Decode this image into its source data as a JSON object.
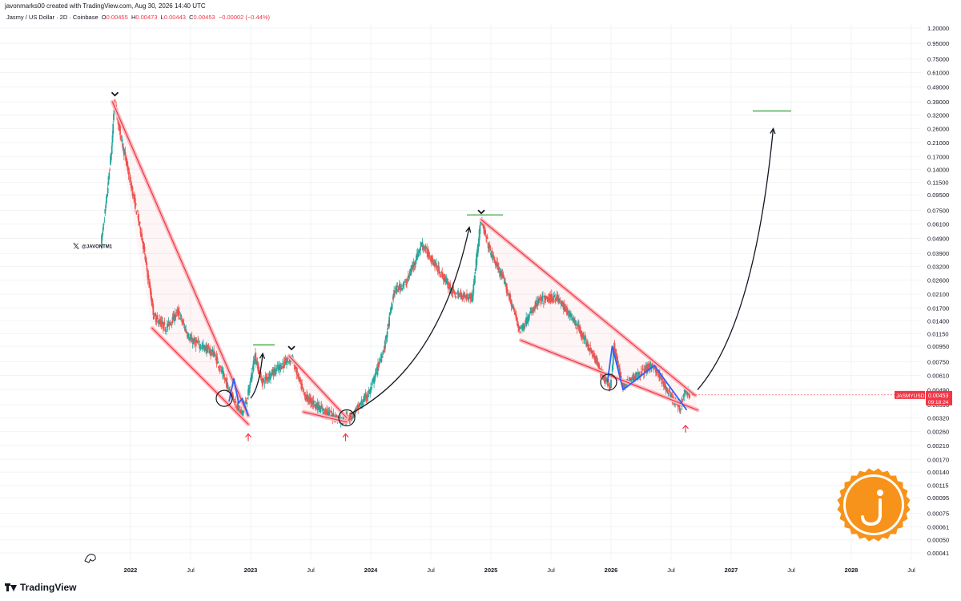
{
  "header": {
    "creator_line": "javonmarks00 created with TradingView.com, Aug 30, 2026 14:40 UTC",
    "symbol_desc": "Jasmy / US Dollar · 2D · Coinbase",
    "open_label": "O",
    "open": "0.00455",
    "high_label": "H",
    "high": "0.00473",
    "low_label": "L",
    "low": "0.00443",
    "close_label": "C",
    "close": "0.00453",
    "change": "−0.00002 (−0.44%)"
  },
  "watermark_handle": "@JAVONTM1",
  "price_tag": {
    "symbol": "JASMYUSD",
    "price": "0.00453",
    "countdown": "09:18:24"
  },
  "footer": {
    "brand": "TradingView"
  },
  "colors": {
    "up": "#26a69a",
    "down": "#ef5350",
    "channel": "#f23645",
    "wave": "#2962ff",
    "target": "#4caf50",
    "coin": "#f7931a"
  },
  "chart_data": {
    "type": "line",
    "series_note": "JASMYUSD 2D candles (approximate trace)",
    "y_scale": "log",
    "y_ticks": [
      "1.20000",
      "0.95000",
      "0.75000",
      "0.61000",
      "0.49000",
      "0.39000",
      "0.32000",
      "0.26000",
      "0.21000",
      "0.17000",
      "0.14000",
      "0.11500",
      "0.09500",
      "0.07500",
      "0.06100",
      "0.04900",
      "0.03900",
      "0.03200",
      "0.02600",
      "0.02100",
      "0.01700",
      "0.01400",
      "0.01150",
      "0.00950",
      "0.00750",
      "0.00610",
      "0.00490",
      "0.00390",
      "0.00320",
      "0.00260",
      "0.00210",
      "0.00170",
      "0.00140",
      "0.00115",
      "0.00095",
      "0.00075",
      "0.00061",
      "0.00050",
      "0.00041"
    ],
    "x_ticks": [
      "2022",
      "Jul",
      "2023",
      "Jul",
      "2024",
      "Jul",
      "2025",
      "Jul",
      "2026",
      "Jul",
      "2027",
      "Jul",
      "2028",
      "Jul"
    ],
    "price_path": [
      {
        "t": 2021.76,
        "y": 0.045
      },
      {
        "t": 2021.8,
        "y": 0.08
      },
      {
        "t": 2021.85,
        "y": 0.2
      },
      {
        "t": 2021.87,
        "y": 0.39
      },
      {
        "t": 2021.93,
        "y": 0.22
      },
      {
        "t": 2022.0,
        "y": 0.12
      },
      {
        "t": 2022.1,
        "y": 0.05
      },
      {
        "t": 2022.2,
        "y": 0.015
      },
      {
        "t": 2022.3,
        "y": 0.0125
      },
      {
        "t": 2022.4,
        "y": 0.016
      },
      {
        "t": 2022.5,
        "y": 0.0105
      },
      {
        "t": 2022.6,
        "y": 0.0095
      },
      {
        "t": 2022.7,
        "y": 0.0085
      },
      {
        "t": 2022.8,
        "y": 0.0055
      },
      {
        "t": 2022.86,
        "y": 0.0043
      },
      {
        "t": 2022.93,
        "y": 0.0033
      },
      {
        "t": 2022.98,
        "y": 0.0044
      },
      {
        "t": 2023.04,
        "y": 0.0082
      },
      {
        "t": 2023.1,
        "y": 0.0055
      },
      {
        "t": 2023.2,
        "y": 0.0065
      },
      {
        "t": 2023.35,
        "y": 0.008
      },
      {
        "t": 2023.45,
        "y": 0.0045
      },
      {
        "t": 2023.6,
        "y": 0.0036
      },
      {
        "t": 2023.75,
        "y": 0.0031
      },
      {
        "t": 2023.85,
        "y": 0.0033
      },
      {
        "t": 2024.0,
        "y": 0.0048
      },
      {
        "t": 2024.12,
        "y": 0.0095
      },
      {
        "t": 2024.2,
        "y": 0.022
      },
      {
        "t": 2024.3,
        "y": 0.025
      },
      {
        "t": 2024.43,
        "y": 0.045
      },
      {
        "t": 2024.55,
        "y": 0.032
      },
      {
        "t": 2024.7,
        "y": 0.021
      },
      {
        "t": 2024.85,
        "y": 0.02
      },
      {
        "t": 2024.92,
        "y": 0.065
      },
      {
        "t": 2025.0,
        "y": 0.04
      },
      {
        "t": 2025.12,
        "y": 0.025
      },
      {
        "t": 2025.25,
        "y": 0.012
      },
      {
        "t": 2025.4,
        "y": 0.019
      },
      {
        "t": 2025.55,
        "y": 0.02
      },
      {
        "t": 2025.7,
        "y": 0.014
      },
      {
        "t": 2025.85,
        "y": 0.0085
      },
      {
        "t": 2025.95,
        "y": 0.0058
      },
      {
        "t": 2026.0,
        "y": 0.0052
      },
      {
        "t": 2026.03,
        "y": 0.0095
      },
      {
        "t": 2026.1,
        "y": 0.0052
      },
      {
        "t": 2026.25,
        "y": 0.0063
      },
      {
        "t": 2026.35,
        "y": 0.0072
      },
      {
        "t": 2026.45,
        "y": 0.0052
      },
      {
        "t": 2026.5,
        "y": 0.0044
      },
      {
        "t": 2026.58,
        "y": 0.0037
      },
      {
        "t": 2026.62,
        "y": 0.0049
      },
      {
        "t": 2026.66,
        "y": 0.00453
      }
    ],
    "last_price": 0.00453,
    "annotations": {
      "channel_1": {
        "top": [
          [
            2021.85,
            0.39
          ],
          [
            2022.98,
            0.0033
          ]
        ],
        "bottom": [
          [
            2022.18,
            0.0125
          ],
          [
            2022.98,
            0.0029
          ]
        ]
      },
      "channel_2": {
        "top": [
          [
            2023.32,
            0.0082
          ],
          [
            2023.8,
            0.0032
          ]
        ],
        "bottom": [
          [
            2023.44,
            0.0035
          ],
          [
            2023.8,
            0.003
          ]
        ]
      },
      "channel_3": {
        "top": [
          [
            2024.92,
            0.065
          ],
          [
            2026.7,
            0.0045
          ]
        ],
        "bottom": [
          [
            2025.25,
            0.0104
          ],
          [
            2026.72,
            0.0036
          ]
        ]
      },
      "wave_1": [
        [
          2022.82,
          0.0041
        ],
        [
          2022.86,
          0.0058
        ],
        [
          2022.9,
          0.004
        ],
        [
          2022.93,
          0.0043
        ],
        [
          2022.98,
          0.0033
        ]
      ],
      "wave_2": [
        [
          2025.97,
          0.0055
        ],
        [
          2026.01,
          0.0095
        ],
        [
          2026.1,
          0.0049
        ],
        [
          2026.36,
          0.0071
        ],
        [
          2026.63,
          0.0036
        ]
      ],
      "arrows": [
        {
          "from": [
            2023.0,
            0.0043
          ],
          "to": [
            2023.1,
            0.0085
          ]
        },
        {
          "from": [
            2023.83,
            0.0034
          ],
          "to": [
            2024.82,
            0.058
          ]
        },
        {
          "from": [
            2026.72,
            0.0049
          ],
          "to": [
            2027.35,
            0.26
          ]
        }
      ],
      "targets": [
        {
          "x0": 2023.02,
          "x1": 2023.2,
          "y": 0.0097
        },
        {
          "x0": 2024.8,
          "x1": 2025.1,
          "y": 0.07
        },
        {
          "x0": 2027.18,
          "x1": 2027.5,
          "y": 0.34
        }
      ],
      "tops": [
        [
          2021.87,
          0.39
        ],
        [
          2023.34,
          0.0082
        ],
        [
          2024.92,
          0.065
        ]
      ],
      "bottoms": [
        [
          2022.98,
          0.0029
        ],
        [
          2023.79,
          0.0029
        ],
        [
          2026.62,
          0.0033
        ]
      ],
      "circles": [
        [
          2022.78,
          0.0043
        ],
        [
          2023.8,
          0.0032
        ],
        [
          2025.98,
          0.0055
        ]
      ]
    }
  }
}
